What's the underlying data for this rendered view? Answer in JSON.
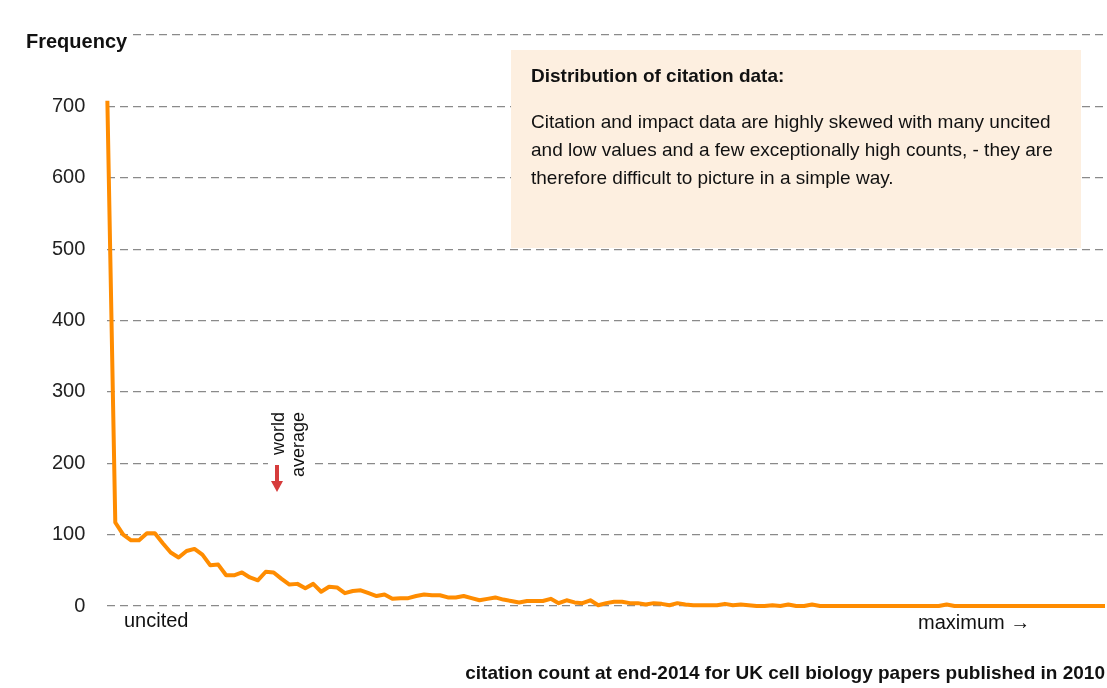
{
  "chart_data": {
    "type": "line",
    "ylabel": "Frequency",
    "xlabel": "citation count at end-2014 for UK cell biology papers published in 2010",
    "categories": [
      null,
      null,
      null,
      null,
      null,
      null,
      null,
      null,
      null,
      null,
      null,
      null,
      null,
      null,
      null,
      null,
      null,
      null,
      null,
      null,
      null,
      null,
      null,
      null,
      null,
      null,
      null,
      null,
      null,
      null,
      null,
      null,
      null,
      null,
      null,
      null,
      null,
      null,
      null,
      null,
      null,
      null,
      null,
      null,
      null,
      null,
      null,
      null,
      null,
      null,
      null,
      null,
      null,
      null,
      null,
      null,
      null,
      null,
      null,
      null,
      null,
      null,
      null,
      null,
      null,
      null,
      null,
      null,
      null,
      null,
      null,
      null,
      null,
      null,
      null,
      null,
      null,
      null,
      null,
      null,
      null,
      null,
      null,
      null,
      null,
      null,
      null,
      null,
      null,
      null,
      null,
      null,
      null,
      null,
      null,
      null,
      null,
      null,
      null,
      null,
      null,
      null,
      null,
      null,
      null,
      null,
      null,
      null,
      null,
      null,
      null,
      null,
      null,
      null,
      null,
      null,
      null,
      null,
      null,
      null,
      null,
      null,
      null,
      null,
      null,
      null,
      null
    ],
    "series": [
      {
        "color": "#ff8c00",
        "values": [
          708,
          117,
          100,
          92,
          92,
          102,
          102,
          88,
          75,
          68,
          77,
          80,
          72,
          57,
          58,
          43,
          43,
          47,
          40,
          36,
          48,
          47,
          38,
          30,
          31,
          25,
          31,
          20,
          27,
          26,
          18,
          21,
          22,
          18,
          14,
          16,
          10,
          11,
          11,
          14,
          16,
          15,
          15,
          12,
          12,
          14,
          11,
          8,
          10,
          12,
          9,
          7,
          5,
          7,
          7,
          7,
          10,
          4,
          8,
          5,
          4,
          8,
          1,
          4,
          6,
          6,
          4,
          4,
          2,
          4,
          3,
          1,
          4,
          2,
          1,
          1,
          1,
          1,
          3,
          1,
          2,
          1,
          0,
          0,
          1,
          0,
          2,
          0,
          0,
          2,
          0,
          0,
          0,
          0,
          0,
          0,
          0,
          0,
          0,
          0,
          0,
          0,
          0,
          0,
          0,
          0,
          2,
          0,
          0,
          0,
          0,
          0,
          0,
          0,
          0,
          0,
          0,
          0,
          0,
          0,
          0,
          0,
          0,
          0,
          0,
          0,
          0
        ]
      }
    ],
    "ylim": [
      0,
      800
    ],
    "yticks": [
      0,
      100,
      200,
      300,
      400,
      500,
      600,
      700,
      {
        "value": 800,
        "label": null
      }
    ],
    "grid": "y",
    "legend": false,
    "marker": "none",
    "line_style": "solid",
    "annotations": [
      "uncited",
      "maximum →",
      "world average",
      "Distribution of citation data:",
      "Citation and impact data are highly skewed with many uncited and low values and a few exceptionally high counts, -  they are therefore difficult to picture in a simple way."
    ]
  }
}
